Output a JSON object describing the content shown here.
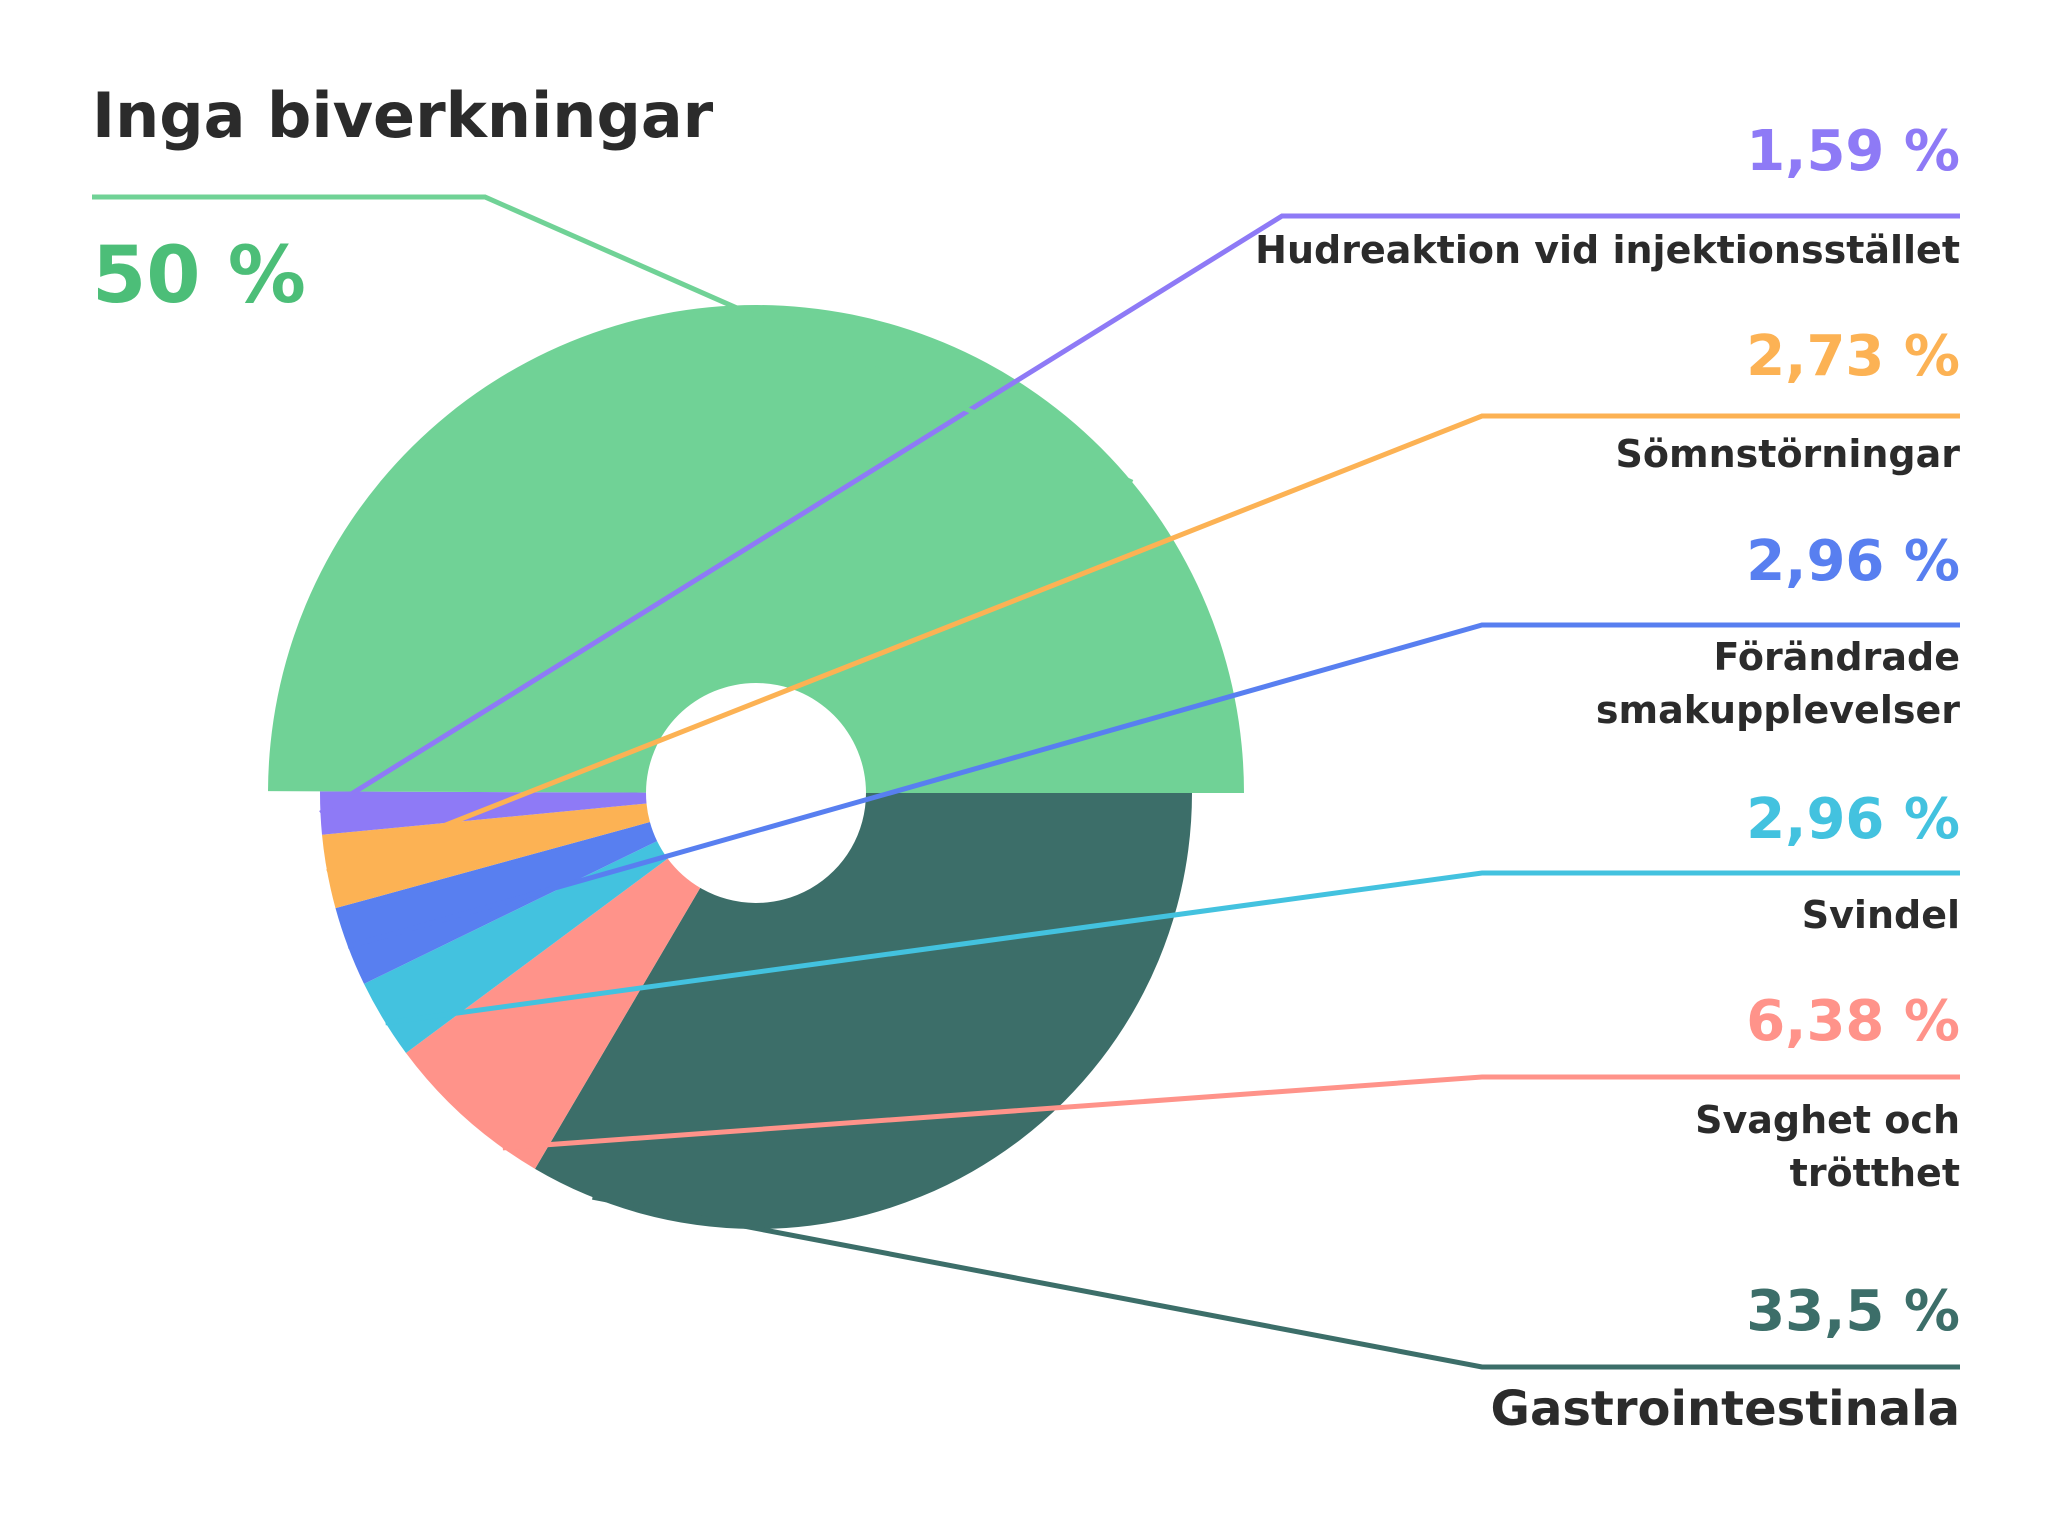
{
  "chart_data": {
    "type": "pie",
    "title": "",
    "unit": "%",
    "slices": [
      {
        "label": "Gastrointestinala",
        "value": 33.5,
        "value_label": "33,5 %",
        "color": "#3c6e69"
      },
      {
        "label": "Svaghet och trötthet",
        "label_lines": [
          "Svaghet och",
          "trötthet"
        ],
        "value": 6.38,
        "value_label": "6,38 %",
        "color": "#ff938a"
      },
      {
        "label": "Svindel",
        "value": 2.96,
        "value_label": "2,96 %",
        "color": "#43c2df"
      },
      {
        "label": "Förändrade smakupplevelser",
        "label_lines": [
          "Förändrade",
          "smakupplevelser"
        ],
        "value": 2.96,
        "value_label": "2,96 %",
        "color": "#587ff0"
      },
      {
        "label": "Sömnstörningar",
        "value": 2.73,
        "value_label": "2,73 %",
        "color": "#fcb254"
      },
      {
        "label": "Hudreaktion vid injektionsstället",
        "value": 1.59,
        "value_label": "1,59 %",
        "color": "#8e7af6"
      },
      {
        "label": "Inga biverkningar",
        "value": 50,
        "value_label": "50 %",
        "color": "#70d296",
        "value_color": "#4cbe78"
      }
    ]
  }
}
